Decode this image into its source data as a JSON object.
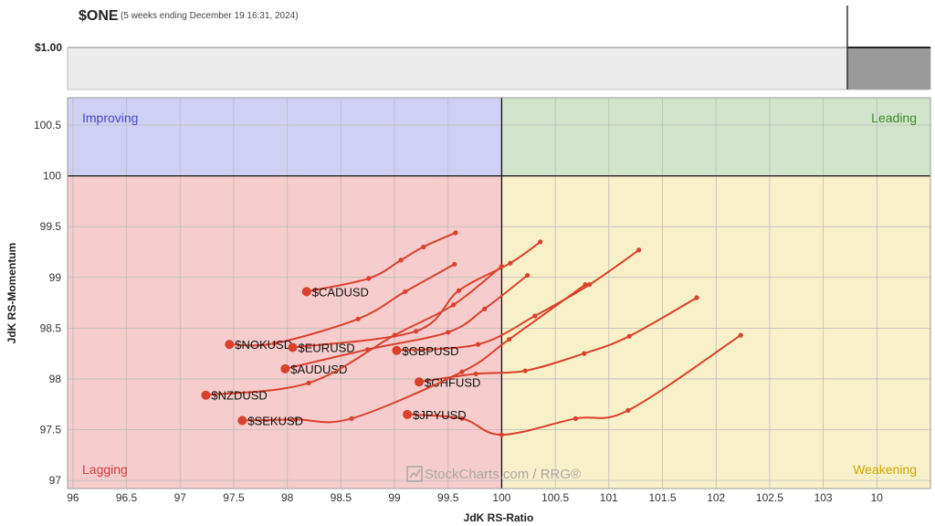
{
  "header": {
    "symbol": "$ONE",
    "period": "(5 weeks ending December 19 16:31, 2024)",
    "price_label": "$1.00"
  },
  "chart_data": {
    "type": "line",
    "xlabel": "JdK RS-Ratio",
    "ylabel": "JdK RS-Momentum",
    "xlim": [
      95.95,
      104
    ],
    "ylim": [
      96.92,
      100.77
    ],
    "x_ticks": [
      "96",
      "96.5",
      "97",
      "97.5",
      "98",
      "98.5",
      "99",
      "99.5",
      "100",
      "100.5",
      "101",
      "101.5",
      "102",
      "102.5",
      "103",
      "10"
    ],
    "y_ticks": [
      "97",
      "97.5",
      "98",
      "98.5",
      "99",
      "99.5",
      "100",
      "100.5"
    ],
    "grid": true,
    "quadrants": [
      {
        "label": "Improving",
        "color": "#4646c8",
        "fill": "#d0d0f4"
      },
      {
        "label": "Leading",
        "color": "#3c8c28",
        "fill": "#d2e4cc"
      },
      {
        "label": "Lagging",
        "color": "#d23c3c",
        "fill": "#f6cccc"
      },
      {
        "label": "Weakening",
        "color": "#d2a500",
        "fill": "#f8f0c8"
      }
    ],
    "series_color": "#d9412c",
    "series": [
      {
        "name": "$CADUSD",
        "points": [
          [
            99.57,
            99.44
          ],
          [
            99.27,
            99.3
          ],
          [
            99.06,
            99.17
          ],
          [
            98.76,
            98.99
          ],
          [
            98.18,
            98.86
          ]
        ]
      },
      {
        "name": "$NOKUSD",
        "points": [
          [
            99.56,
            99.13
          ],
          [
            99.1,
            98.86
          ],
          [
            98.66,
            98.59
          ],
          [
            97.88,
            98.35
          ],
          [
            97.46,
            98.34
          ]
        ]
      },
      {
        "name": "$EURUSD",
        "points": [
          [
            100.36,
            99.35
          ],
          [
            100.08,
            99.14
          ],
          [
            99.6,
            98.87
          ],
          [
            99.2,
            98.47
          ],
          [
            98.05,
            98.31
          ]
        ]
      },
      {
        "name": "$GBPUSD",
        "points": [
          [
            101.28,
            99.27
          ],
          [
            100.82,
            98.93
          ],
          [
            100.31,
            98.62
          ],
          [
            99.78,
            98.34
          ],
          [
            99.02,
            98.28
          ]
        ]
      },
      {
        "name": "$AUDUSD",
        "points": [
          [
            100.24,
            99.02
          ],
          [
            99.84,
            98.69
          ],
          [
            99.5,
            98.46
          ],
          [
            98.75,
            98.29
          ],
          [
            97.98,
            98.1
          ]
        ]
      },
      {
        "name": "$NZDUSD",
        "points": [
          [
            100.0,
            99.11
          ],
          [
            99.55,
            98.73
          ],
          [
            99.0,
            98.43
          ],
          [
            98.2,
            97.96
          ],
          [
            97.24,
            97.84
          ]
        ]
      },
      {
        "name": "$CHFUSD",
        "points": [
          [
            101.82,
            98.8
          ],
          [
            101.19,
            98.42
          ],
          [
            100.77,
            98.25
          ],
          [
            100.22,
            98.08
          ],
          [
            99.76,
            98.05
          ],
          [
            99.23,
            97.97
          ]
        ]
      },
      {
        "name": "$SEKUSD",
        "points": [
          [
            100.78,
            98.93
          ],
          [
            100.07,
            98.39
          ],
          [
            99.63,
            98.07
          ],
          [
            98.6,
            97.61
          ],
          [
            98.08,
            97.6
          ],
          [
            97.58,
            97.59
          ]
        ]
      },
      {
        "name": "$JPYUSD",
        "points": [
          [
            102.23,
            98.43
          ],
          [
            101.18,
            97.69
          ],
          [
            100.69,
            97.61
          ],
          [
            100.0,
            97.45
          ],
          [
            99.63,
            97.61
          ],
          [
            99.12,
            97.65
          ]
        ]
      }
    ]
  },
  "watermark": "StockCharts.com / RRG®"
}
